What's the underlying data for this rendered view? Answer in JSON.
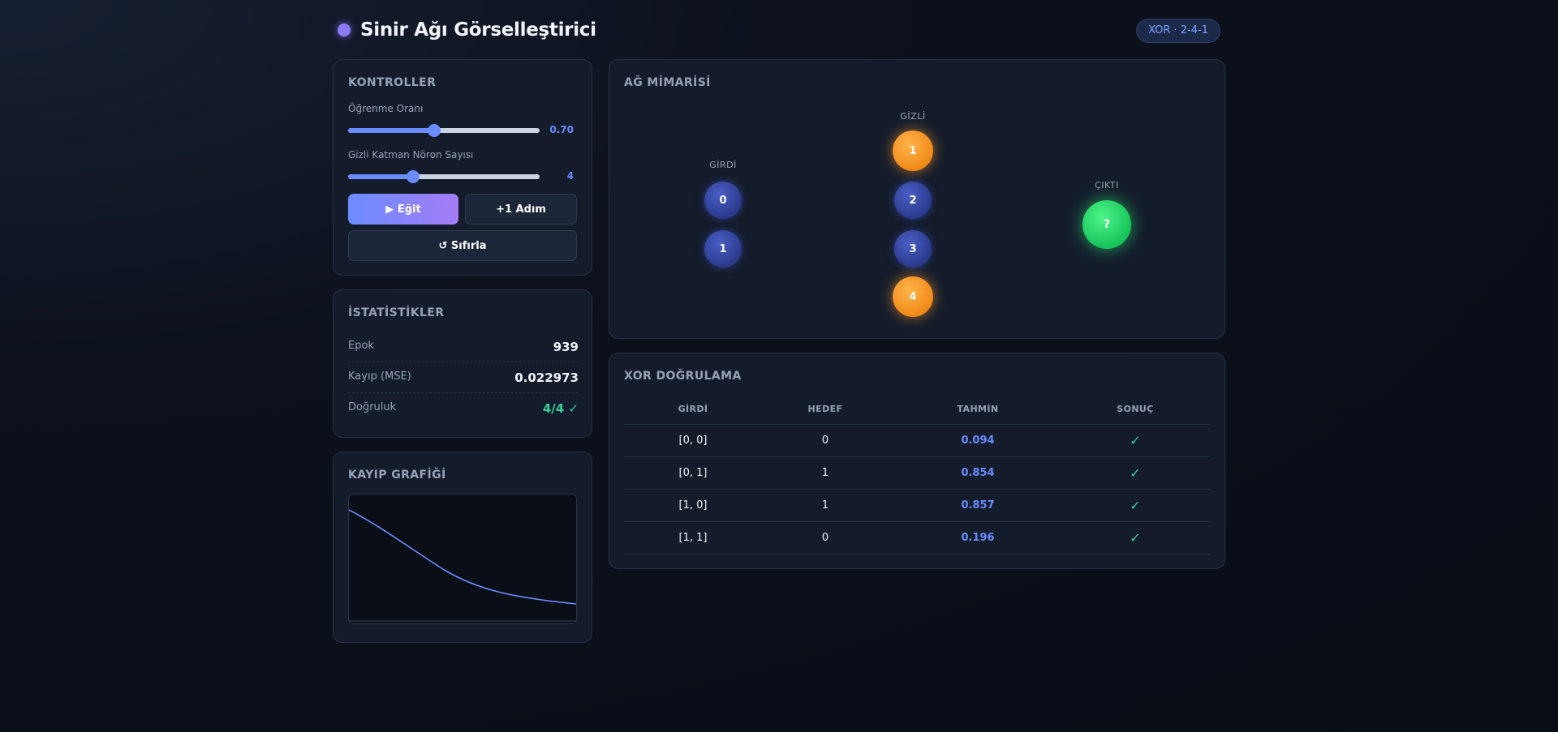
{
  "header": {
    "title": "Sinir Ağı Görselleştirici",
    "badge": "XOR · 2-4-1"
  },
  "controls": {
    "title": "KONTROLLER",
    "learning_rate": {
      "label": "Öğrenme Oranı",
      "value": "0.70",
      "fraction": 0.45
    },
    "hidden_neurons": {
      "label": "Gizli Katman Nöron Sayısı",
      "value": "4",
      "fraction": 0.34
    },
    "train_label": "▶ Eğit",
    "step_label": "+1 Adım",
    "reset_label": "↺ Sıfırla"
  },
  "stats": {
    "title": "İSTATİSTİKLER",
    "rows": [
      {
        "label": "Epok",
        "value": "939"
      },
      {
        "label": "Kayıp (MSE)",
        "value": "0.022973"
      },
      {
        "label": "Doğruluk",
        "value": "4/4 ✓"
      }
    ]
  },
  "loss_chart": {
    "title": "KAYIP GRAFİĞİ",
    "line_color": "#6b8cff"
  },
  "network": {
    "title": "AĞ MİMARİSİ",
    "input_label": "GİRDİ",
    "hidden_label": "GİZLİ",
    "output_label": "ÇIKTI",
    "inputs": [
      "0",
      "1"
    ],
    "hidden": [
      "1",
      "2",
      "3",
      "4"
    ],
    "hidden_active": [
      true,
      false,
      false,
      true
    ],
    "output": "?"
  },
  "xor": {
    "title": "XOR DOĞRULAMA",
    "headers": [
      "GİRDİ",
      "HEDEF",
      "TAHMİN",
      "SONUÇ"
    ],
    "rows": [
      {
        "input": "[0, 0]",
        "target": "0",
        "prediction": "0.094",
        "result": "✓"
      },
      {
        "input": "[0, 1]",
        "target": "1",
        "prediction": "0.854",
        "result": "✓"
      },
      {
        "input": "[1, 0]",
        "target": "1",
        "prediction": "0.857",
        "result": "✓"
      },
      {
        "input": "[1, 1]",
        "target": "0",
        "prediction": "0.196",
        "result": "✓"
      }
    ]
  }
}
